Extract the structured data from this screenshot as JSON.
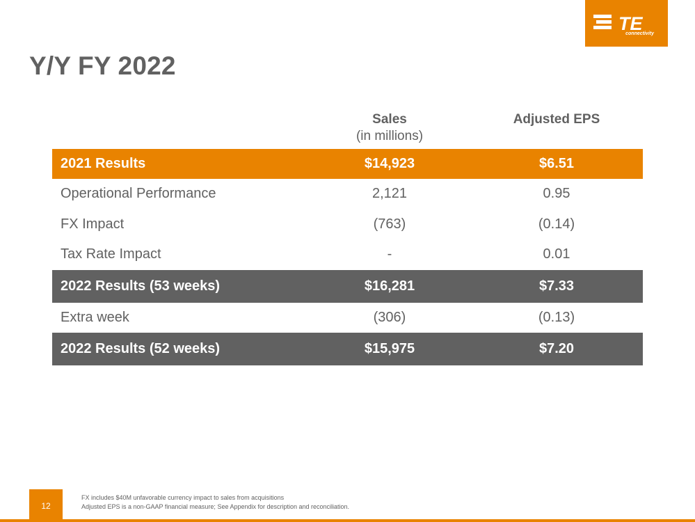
{
  "logo": {
    "mark": "TE",
    "subtitle": "connectivity"
  },
  "title": "Y/Y FY 2022",
  "columns": {
    "sales_main": "Sales",
    "sales_sub": "(in millions)",
    "eps_main": "Adjusted EPS"
  },
  "rows": [
    {
      "label": "2021 Results",
      "sales": "$14,923",
      "eps": "$6.51"
    },
    {
      "label": "Operational Performance",
      "sales": "2,121",
      "eps": "0.95"
    },
    {
      "label": "FX Impact",
      "sales": "(763)",
      "eps": "(0.14)"
    },
    {
      "label": "Tax Rate Impact",
      "sales": "-",
      "eps": "0.01"
    },
    {
      "label": "2022 Results (53 weeks)",
      "sales": "$16,281",
      "eps": "$7.33"
    },
    {
      "label": "Extra week",
      "sales": "(306)",
      "eps": "(0.13)"
    },
    {
      "label": "2022 Results (52 weeks)",
      "sales": "$15,975",
      "eps": "$7.20"
    }
  ],
  "page_number": "12",
  "footnotes": [
    "FX includes $40M unfavorable currency impact to sales from acquisitions",
    "Adjusted EPS is a non-GAAP financial measure; See Appendix for description and reconciliation."
  ],
  "colors": {
    "accent": "#e98300",
    "gray": "#616161"
  }
}
